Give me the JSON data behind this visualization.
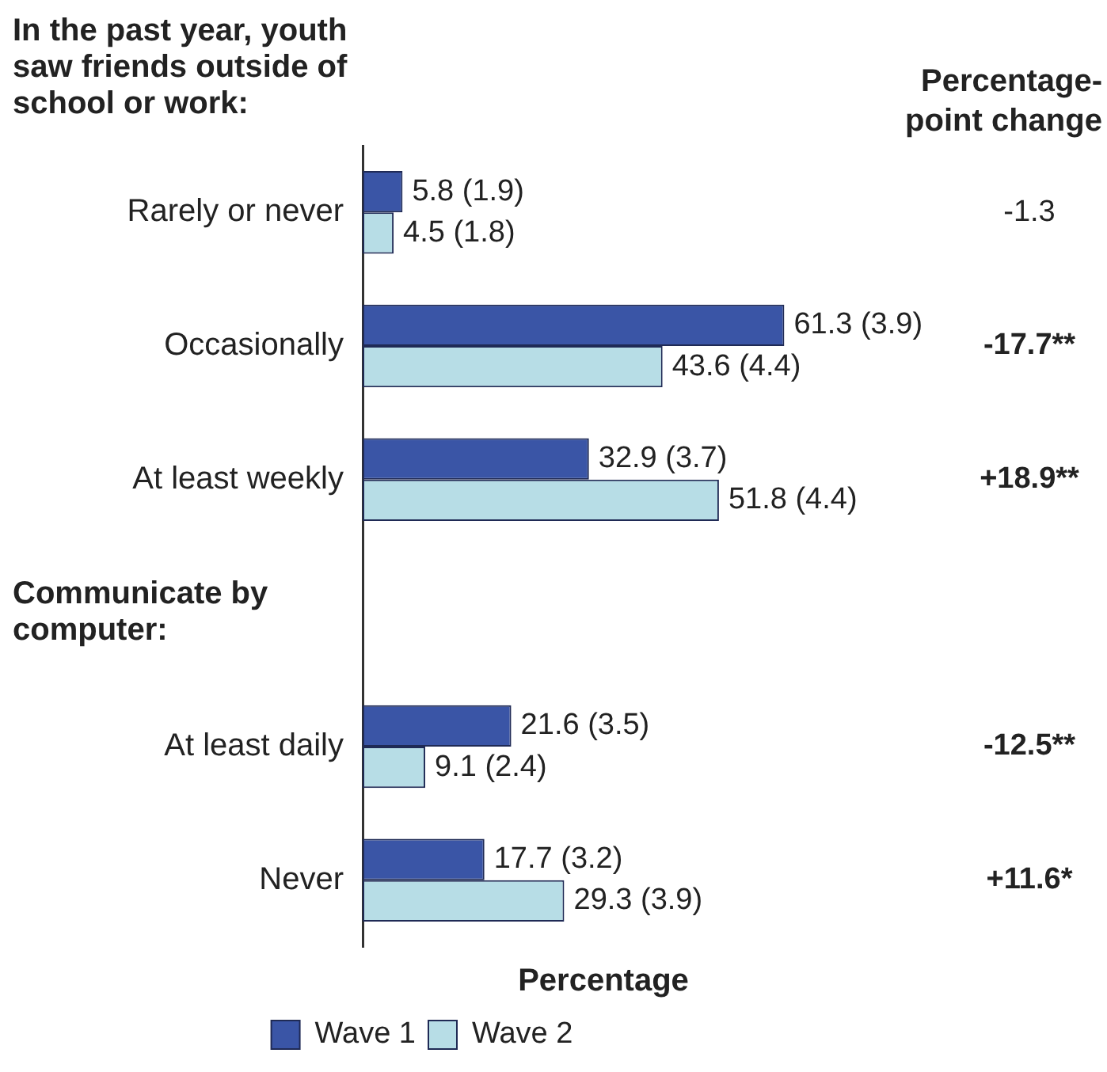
{
  "chart_data": {
    "type": "bar",
    "orientation": "horizontal",
    "xlabel": "Percentage",
    "categories": [
      "Rarely or never",
      "Occasionally",
      "At least weekly",
      null,
      "At least daily",
      "Never"
    ],
    "series": [
      {
        "name": "Wave 1",
        "color": "#3a55a6",
        "values": [
          5.8,
          61.3,
          32.9,
          null,
          21.6,
          17.7
        ],
        "value_labels": [
          "5.8 (1.9)",
          "61.3 (3.9)",
          "32.9 (3.7)",
          null,
          "21.6 (3.5)",
          "17.7 (3.2)"
        ]
      },
      {
        "name": "Wave 2",
        "color": "#b7dde6",
        "values": [
          4.5,
          43.6,
          51.8,
          null,
          9.1,
          29.3
        ],
        "value_labels": [
          "4.5 (1.8)",
          "43.6 (4.4)",
          "51.8 (4.4)",
          null,
          "9.1 (2.4)",
          "29.3 (3.9)"
        ]
      }
    ],
    "tick_labels": "y",
    "grid": false,
    "legend": "bottom",
    "annotations": [
      "In the past year, youth saw friends outside of school or work:",
      "Percentage-point change",
      "Communicate by computer:",
      "-1.3",
      "-17.7**",
      "+18.9**",
      "-12.5**",
      "+11.6*"
    ]
  }
}
